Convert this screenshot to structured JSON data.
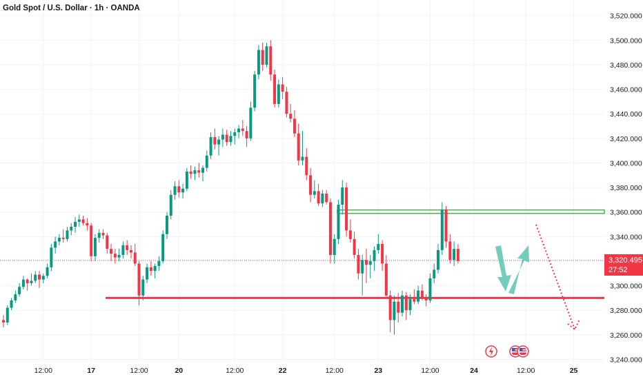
{
  "header": {
    "title": "Gold Spot / U.S. Dollar · 1h · OANDA"
  },
  "colors": {
    "up": "#089981",
    "down": "#f23645",
    "support": "#f23645",
    "resistance": "#4caf50",
    "arrow": "#5cc3b0",
    "grid": "#f0f3fa"
  },
  "icons": [
    "lightning-event-icon",
    "us-flag-event-icon",
    "us-flag-event-icon"
  ],
  "price_tag": {
    "value": "3,320.495",
    "countdown": "27:52"
  },
  "chart_data": {
    "type": "candlestick",
    "title": "",
    "y_ticks": [
      "3,520.000",
      "3,500.000",
      "3,480.000",
      "3,460.000",
      "3,440.000",
      "3,420.000",
      "3,400.000",
      "3,380.000",
      "3,360.000",
      "3,340.000",
      "3,300.000",
      "3,280.000",
      "3,260.000",
      "3,240.000"
    ],
    "y_tick_values": [
      3520,
      3500,
      3480,
      3460,
      3440,
      3420,
      3400,
      3380,
      3360,
      3340,
      3300,
      3280,
      3260,
      3240
    ],
    "ylim": [
      3238,
      3526
    ],
    "x_ticks": [
      {
        "label": "12:00",
        "bar": 10,
        "bold": false
      },
      {
        "label": "17",
        "bar": 22,
        "bold": true
      },
      {
        "label": "12:00",
        "bar": 34,
        "bold": false
      },
      {
        "label": "20",
        "bar": 44,
        "bold": true
      },
      {
        "label": "12:00",
        "bar": 58,
        "bold": false
      },
      {
        "label": "22",
        "bar": 70,
        "bold": true
      },
      {
        "label": "12:00",
        "bar": 83,
        "bold": false
      },
      {
        "label": "23",
        "bar": 94,
        "bold": true
      },
      {
        "label": "12:00",
        "bar": 107,
        "bold": false
      },
      {
        "label": "24",
        "bar": 118,
        "bold": true
      },
      {
        "label": "12:00",
        "bar": 131,
        "bold": false
      },
      {
        "label": "25",
        "bar": 143,
        "bold": true
      }
    ],
    "candles": [
      [
        3272,
        3276,
        3266,
        3270
      ],
      [
        3270,
        3284,
        3268,
        3282
      ],
      [
        3282,
        3290,
        3280,
        3288
      ],
      [
        3288,
        3296,
        3286,
        3293
      ],
      [
        3293,
        3302,
        3291,
        3299
      ],
      [
        3299,
        3308,
        3297,
        3305
      ],
      [
        3305,
        3306,
        3296,
        3302
      ],
      [
        3302,
        3310,
        3300,
        3304
      ],
      [
        3304,
        3312,
        3302,
        3309
      ],
      [
        3309,
        3312,
        3298,
        3305
      ],
      [
        3305,
        3310,
        3302,
        3308
      ],
      [
        3308,
        3318,
        3306,
        3315
      ],
      [
        3315,
        3334,
        3312,
        3331
      ],
      [
        3331,
        3340,
        3326,
        3336
      ],
      [
        3336,
        3342,
        3333,
        3339
      ],
      [
        3339,
        3346,
        3335,
        3338
      ],
      [
        3338,
        3348,
        3336,
        3345
      ],
      [
        3345,
        3351,
        3341,
        3348
      ],
      [
        3348,
        3356,
        3343,
        3352
      ],
      [
        3352,
        3358,
        3348,
        3354
      ],
      [
        3354,
        3357,
        3349,
        3351
      ],
      [
        3351,
        3355,
        3345,
        3349
      ],
      [
        3349,
        3351,
        3320,
        3324
      ],
      [
        3324,
        3342,
        3320,
        3339
      ],
      [
        3339,
        3346,
        3335,
        3343
      ],
      [
        3343,
        3346,
        3338,
        3341
      ],
      [
        3341,
        3343,
        3326,
        3330
      ],
      [
        3330,
        3334,
        3320,
        3326
      ],
      [
        3326,
        3330,
        3318,
        3323
      ],
      [
        3323,
        3330,
        3320,
        3325
      ],
      [
        3325,
        3336,
        3322,
        3333
      ],
      [
        3333,
        3337,
        3325,
        3329
      ],
      [
        3329,
        3333,
        3322,
        3327
      ],
      [
        3327,
        3334,
        3316,
        3318
      ],
      [
        3318,
        3320,
        3284,
        3292
      ],
      [
        3292,
        3308,
        3288,
        3305
      ],
      [
        3305,
        3318,
        3302,
        3315
      ],
      [
        3315,
        3320,
        3308,
        3312
      ],
      [
        3312,
        3318,
        3306,
        3316
      ],
      [
        3316,
        3324,
        3312,
        3320
      ],
      [
        3320,
        3345,
        3318,
        3342
      ],
      [
        3342,
        3360,
        3338,
        3357
      ],
      [
        3357,
        3378,
        3354,
        3374
      ],
      [
        3374,
        3385,
        3370,
        3381
      ],
      [
        3381,
        3386,
        3372,
        3376
      ],
      [
        3376,
        3383,
        3371,
        3379
      ],
      [
        3379,
        3396,
        3377,
        3393
      ],
      [
        3393,
        3398,
        3387,
        3391
      ],
      [
        3391,
        3397,
        3386,
        3394
      ],
      [
        3394,
        3400,
        3388,
        3392
      ],
      [
        3392,
        3398,
        3385,
        3396
      ],
      [
        3396,
        3410,
        3393,
        3406
      ],
      [
        3406,
        3425,
        3403,
        3421
      ],
      [
        3421,
        3428,
        3411,
        3415
      ],
      [
        3415,
        3422,
        3406,
        3419
      ],
      [
        3419,
        3428,
        3413,
        3423
      ],
      [
        3423,
        3427,
        3414,
        3417
      ],
      [
        3417,
        3426,
        3414,
        3422
      ],
      [
        3422,
        3428,
        3415,
        3425
      ],
      [
        3425,
        3431,
        3420,
        3428
      ],
      [
        3428,
        3435,
        3422,
        3426
      ],
      [
        3426,
        3430,
        3413,
        3420
      ],
      [
        3420,
        3450,
        3418,
        3445
      ],
      [
        3445,
        3475,
        3442,
        3472
      ],
      [
        3472,
        3496,
        3468,
        3492
      ],
      [
        3492,
        3498,
        3475,
        3480
      ],
      [
        3480,
        3498,
        3478,
        3495
      ],
      [
        3495,
        3500,
        3467,
        3472
      ],
      [
        3472,
        3476,
        3445,
        3448
      ],
      [
        3448,
        3468,
        3445,
        3464
      ],
      [
        3464,
        3470,
        3452,
        3458
      ],
      [
        3458,
        3462,
        3437,
        3440
      ],
      [
        3440,
        3448,
        3433,
        3436
      ],
      [
        3436,
        3443,
        3421,
        3424
      ],
      [
        3424,
        3432,
        3398,
        3402
      ],
      [
        3402,
        3426,
        3398,
        3405
      ],
      [
        3405,
        3412,
        3386,
        3390
      ],
      [
        3390,
        3396,
        3368,
        3374
      ],
      [
        3374,
        3386,
        3371,
        3377
      ],
      [
        3377,
        3383,
        3365,
        3367
      ],
      [
        3367,
        3378,
        3364,
        3375
      ],
      [
        3375,
        3378,
        3366,
        3368
      ],
      [
        3368,
        3371,
        3318,
        3325
      ],
      [
        3325,
        3342,
        3318,
        3338
      ],
      [
        3338,
        3370,
        3334,
        3366
      ],
      [
        3366,
        3386,
        3358,
        3380
      ],
      [
        3380,
        3384,
        3340,
        3345
      ],
      [
        3345,
        3354,
        3335,
        3338
      ],
      [
        3338,
        3344,
        3322,
        3325
      ],
      [
        3325,
        3330,
        3305,
        3310
      ],
      [
        3310,
        3325,
        3292,
        3321
      ],
      [
        3321,
        3330,
        3302,
        3317
      ],
      [
        3317,
        3325,
        3306,
        3320
      ],
      [
        3320,
        3332,
        3312,
        3329
      ],
      [
        3329,
        3342,
        3326,
        3334
      ],
      [
        3334,
        3337,
        3312,
        3318
      ],
      [
        3318,
        3325,
        3290,
        3292
      ],
      [
        3292,
        3296,
        3262,
        3272
      ],
      [
        3272,
        3292,
        3260,
        3287
      ],
      [
        3287,
        3294,
        3270,
        3278
      ],
      [
        3278,
        3296,
        3275,
        3292
      ],
      [
        3292,
        3295,
        3272,
        3280
      ],
      [
        3280,
        3293,
        3276,
        3289
      ],
      [
        3289,
        3297,
        3285,
        3287
      ],
      [
        3287,
        3300,
        3285,
        3296
      ],
      [
        3296,
        3301,
        3288,
        3290
      ],
      [
        3290,
        3293,
        3283,
        3288
      ],
      [
        3288,
        3310,
        3286,
        3306
      ],
      [
        3306,
        3318,
        3302,
        3313
      ],
      [
        3313,
        3334,
        3310,
        3329
      ],
      [
        3329,
        3368,
        3325,
        3362
      ],
      [
        3362,
        3365,
        3331,
        3336
      ],
      [
        3336,
        3342,
        3318,
        3321
      ],
      [
        3321,
        3336,
        3316,
        3330
      ],
      [
        3330,
        3334,
        3318,
        3320
      ]
    ],
    "support_level": 3290,
    "resistance_level": 3360,
    "current_price": 3320.495,
    "countdown": "27:52"
  }
}
